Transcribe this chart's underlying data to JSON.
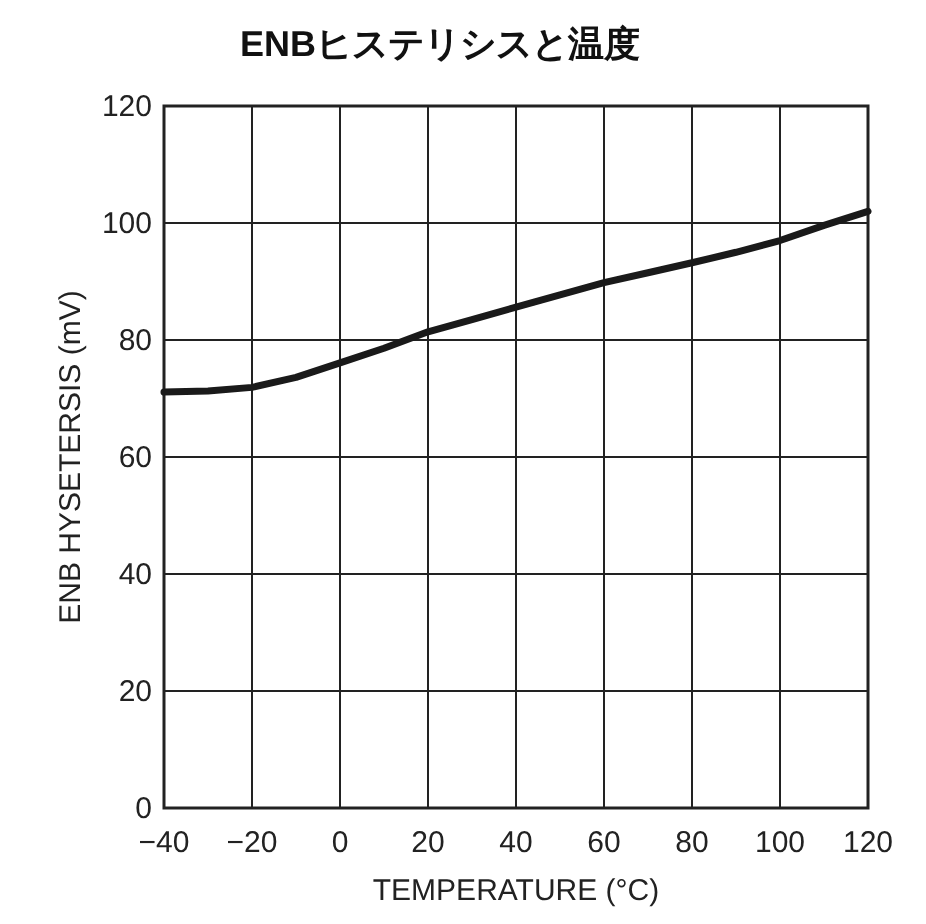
{
  "chart_data": {
    "type": "line",
    "title": "ENBヒステリシスと温度",
    "xlabel": "TEMPERATURE (°C)",
    "ylabel": "ENB HYSETERSIS (mV)",
    "x": [
      -40,
      -30,
      -20,
      -10,
      0,
      10,
      20,
      30,
      40,
      50,
      60,
      70,
      80,
      90,
      100,
      110,
      120
    ],
    "series": [
      {
        "color": "#1a1a1a",
        "values": [
          71.1,
          71.3,
          71.9,
          73.6,
          76.1,
          78.6,
          81.4,
          83.5,
          85.6,
          87.7,
          89.8,
          91.5,
          93.2,
          95,
          97,
          99.6,
          102
        ]
      }
    ],
    "xlim": [
      -40,
      120
    ],
    "ylim": [
      0,
      120
    ],
    "xticks": [
      {
        "value": -40,
        "label": "−40"
      },
      {
        "value": -20,
        "label": "−20"
      },
      0,
      20,
      40,
      60,
      80,
      100,
      120
    ],
    "yticks": [
      0,
      20,
      40,
      60,
      80,
      100,
      120
    ],
    "grid": true,
    "marker": "none",
    "line_style": "solid"
  }
}
